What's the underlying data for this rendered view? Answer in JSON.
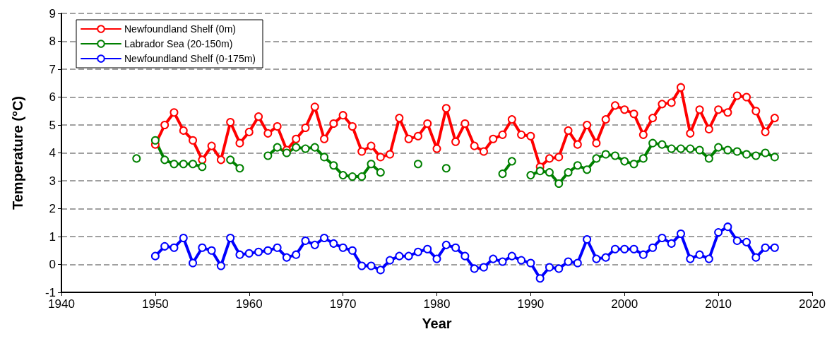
{
  "chart_data": {
    "type": "line",
    "xlabel": "Year",
    "ylabel": "Temperature (°C)",
    "x": [
      1948,
      1949,
      1950,
      1951,
      1952,
      1953,
      1954,
      1955,
      1956,
      1957,
      1958,
      1959,
      1960,
      1961,
      1962,
      1963,
      1964,
      1965,
      1966,
      1967,
      1968,
      1969,
      1970,
      1971,
      1972,
      1973,
      1974,
      1975,
      1976,
      1977,
      1978,
      1979,
      1980,
      1981,
      1982,
      1983,
      1984,
      1985,
      1986,
      1987,
      1988,
      1989,
      1990,
      1991,
      1992,
      1993,
      1994,
      1995,
      1996,
      1997,
      1998,
      1999,
      2000,
      2001,
      2002,
      2003,
      2004,
      2005,
      2006,
      2007,
      2008,
      2009,
      2010,
      2011,
      2012,
      2013,
      2014,
      2015,
      2016
    ],
    "series": [
      {
        "name": "Newfoundland Shelf (0m)",
        "color": "#ff0000",
        "values": [
          null,
          null,
          4.3,
          5.0,
          5.45,
          4.8,
          4.45,
          3.75,
          4.25,
          3.75,
          5.1,
          4.35,
          4.75,
          5.3,
          4.7,
          4.95,
          4.1,
          4.5,
          4.9,
          5.65,
          4.5,
          5.05,
          5.35,
          4.95,
          4.05,
          4.25,
          3.85,
          3.95,
          5.25,
          4.5,
          4.6,
          5.05,
          4.15,
          5.6,
          4.4,
          5.05,
          4.25,
          4.05,
          4.5,
          4.65,
          5.2,
          4.65,
          4.6,
          3.5,
          3.8,
          3.85,
          4.8,
          4.3,
          5.0,
          4.35,
          5.2,
          5.7,
          5.55,
          5.4,
          4.65,
          5.25,
          5.75,
          5.8,
          6.35,
          4.7,
          5.55,
          4.85,
          5.55,
          5.45,
          6.05,
          6.0,
          5.5,
          4.75,
          5.25
        ]
      },
      {
        "name": "Labrador Sea (20-150m)",
        "color": "#008000",
        "values": [
          3.8,
          null,
          4.45,
          3.75,
          3.6,
          3.6,
          3.6,
          3.5,
          null,
          null,
          3.75,
          3.45,
          null,
          null,
          3.9,
          4.2,
          4.0,
          4.2,
          4.15,
          4.2,
          3.85,
          3.55,
          3.2,
          3.15,
          3.15,
          3.6,
          3.3,
          null,
          null,
          null,
          3.6,
          null,
          null,
          3.45,
          null,
          null,
          null,
          null,
          null,
          3.25,
          3.7,
          null,
          3.2,
          3.35,
          3.3,
          2.9,
          3.3,
          3.55,
          3.4,
          3.8,
          3.95,
          3.9,
          3.7,
          3.6,
          3.8,
          4.35,
          4.3,
          4.15,
          4.15,
          4.15,
          4.1,
          3.8,
          4.2,
          4.1,
          4.05,
          3.95,
          3.9,
          4.0,
          3.85
        ]
      },
      {
        "name": "Newfoundland Shelf (0-175m)",
        "color": "#0000ff",
        "values": [
          null,
          null,
          0.3,
          0.65,
          0.6,
          0.95,
          0.05,
          0.6,
          0.5,
          -0.05,
          0.95,
          0.35,
          0.4,
          0.45,
          0.5,
          0.6,
          0.25,
          0.35,
          0.85,
          0.7,
          0.95,
          0.75,
          0.6,
          0.5,
          -0.05,
          -0.05,
          -0.2,
          0.15,
          0.3,
          0.3,
          0.45,
          0.55,
          0.2,
          0.7,
          0.6,
          0.3,
          -0.15,
          -0.1,
          0.2,
          0.1,
          0.3,
          0.15,
          0.05,
          -0.5,
          -0.1,
          -0.15,
          0.1,
          0.05,
          0.9,
          0.2,
          0.25,
          0.55,
          0.55,
          0.55,
          0.35,
          0.6,
          0.95,
          0.75,
          1.1,
          0.2,
          0.35,
          0.2,
          1.15,
          1.35,
          0.85,
          0.8,
          0.25,
          0.6,
          0.6
        ]
      }
    ],
    "xlim": [
      1940,
      2020
    ],
    "xticks": [
      1940,
      1950,
      1960,
      1970,
      1980,
      1990,
      2000,
      2010,
      2020
    ],
    "ylim": [
      -1,
      9
    ],
    "yticks": [
      -1,
      0,
      1,
      2,
      3,
      4,
      5,
      6,
      7,
      8,
      9
    ],
    "grid": "y",
    "legend": "top left",
    "marker": "circle",
    "line_style": "solid"
  }
}
